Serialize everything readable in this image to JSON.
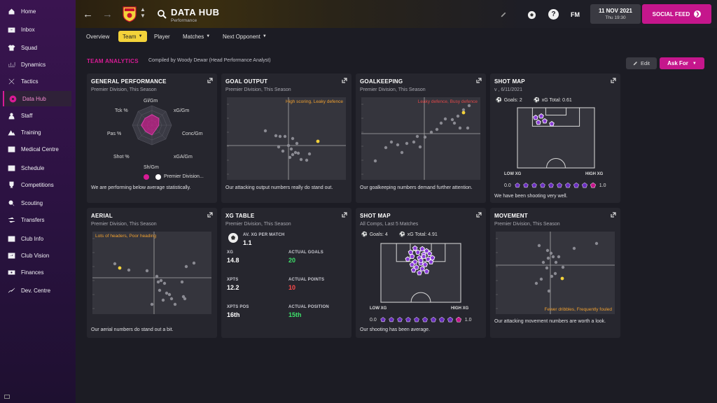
{
  "sidebar": {
    "items": [
      {
        "label": "Home",
        "icon": "home-icon"
      },
      {
        "label": "Inbox",
        "icon": "inbox-icon"
      },
      {
        "label": "Squad",
        "icon": "shirt-icon"
      },
      {
        "label": "Dynamics",
        "icon": "dynamics-icon"
      },
      {
        "label": "Tactics",
        "icon": "tactics-icon"
      },
      {
        "label": "Data Hub",
        "icon": "data-hub-icon"
      },
      {
        "label": "Staff",
        "icon": "staff-icon"
      },
      {
        "label": "Training",
        "icon": "training-icon"
      },
      {
        "label": "Medical Centre",
        "icon": "medical-icon"
      },
      {
        "label": "Schedule",
        "icon": "calendar-icon"
      },
      {
        "label": "Competitions",
        "icon": "trophy-icon"
      },
      {
        "label": "Scouting",
        "icon": "scouting-icon"
      },
      {
        "label": "Transfers",
        "icon": "transfers-icon"
      },
      {
        "label": "Club Info",
        "icon": "club-info-icon"
      },
      {
        "label": "Club Vision",
        "icon": "club-vision-icon"
      },
      {
        "label": "Finances",
        "icon": "finances-icon"
      },
      {
        "label": "Dev. Centre",
        "icon": "dev-centre-icon"
      }
    ],
    "active_index": 5
  },
  "header": {
    "title": "DATA HUB",
    "subtitle": "Performance",
    "date": "11 NOV 2021",
    "day_time": "Thu 19:30",
    "fm_logo": "FM",
    "help": "?",
    "social_feed": "SOCIAL FEED"
  },
  "tabs": [
    {
      "label": "Overview"
    },
    {
      "label": "Team"
    },
    {
      "label": "Player"
    },
    {
      "label": "Matches"
    },
    {
      "label": "Next Opponent"
    }
  ],
  "section": {
    "title": "TEAM ANALYTICS",
    "compiled_by": "Compiled by Woody Dewar (Head Performance Analyst)",
    "edit_label": "Edit",
    "ask_for_label": "Ask For"
  },
  "cards": {
    "general": {
      "title": "GENERAL PERFORMANCE",
      "sub": "Premier Division, This Season",
      "radar_labels": [
        "Gl/Gm",
        "xG/Gm",
        "Conc/Gm",
        "xGA/Gm",
        "Sh/Gm",
        "Shot %",
        "Pas %",
        "Tck %"
      ],
      "radar_values": [
        0.55,
        0.5,
        0.35,
        0.3,
        0.5,
        0.45,
        0.55,
        0.5
      ],
      "legend_label": "Premier Division...",
      "foot": "We are performing below average statistically."
    },
    "goal_output": {
      "title": "GOAL OUTPUT",
      "sub": "Premier Division, This Season",
      "note": "High scoring, Leaky defence",
      "foot": "Our attacking output numbers really do stand out."
    },
    "goalkeeping": {
      "title": "GOALKEEPING",
      "sub": "Premier Division, This Season",
      "note": "Leaky defence, Busy defence",
      "foot": "Our goalkeeping numbers demand further attention."
    },
    "shot_map_1": {
      "title": "SHOT MAP",
      "sub": "v , 6/11/2021",
      "goals": "Goals: 2",
      "xg_total": "xG Total: 0.61",
      "low_xg": "LOW XG",
      "high_xg": "HIGH XG",
      "scale_min": "0.0",
      "scale_max": "1.0",
      "foot": "We have been shooting very well."
    },
    "aerial": {
      "title": "AERIAL",
      "sub": "Premier Division, This Season",
      "note": "Lots of headers, Poor heading",
      "foot": "Our aerial numbers do stand out a bit."
    },
    "xg_table": {
      "title": "XG TABLE",
      "sub": "Premier Division, This Season",
      "av_label": "AV. XG PER MATCH",
      "av_value": "1.1",
      "xg_label": "XG",
      "xg_value": "14.8",
      "goals_label": "ACTUAL GOALS",
      "goals_value": "20",
      "xpts_label": "XPTS",
      "xpts_value": "12.2",
      "points_label": "ACTUAL POINTS",
      "points_value": "10",
      "xpos_label": "XPTS POS",
      "xpos_value": "16th",
      "pos_label": "ACTUAL POSITION",
      "pos_value": "15th"
    },
    "shot_map_2": {
      "title": "SHOT MAP",
      "sub": "All Comps, Last 5 Matches",
      "goals": "Goals: 4",
      "xg_total": "xG Total: 4.91",
      "low_xg": "LOW XG",
      "high_xg": "HIGH XG",
      "scale_min": "0.0",
      "scale_max": "1.0",
      "foot": "Our shooting has been average."
    },
    "movement": {
      "title": "MOVEMENT",
      "sub": "Premier Division, This Season",
      "note": "Fewer dribbles, Frequently fouled",
      "foot": "Our attacking movement numbers are worth a look."
    }
  },
  "colors": {
    "accent": "#d81b95",
    "tab_active": "#f3d23a",
    "note_orange": "#f0a030",
    "note_red": "#e04848",
    "green": "#3ee06a",
    "red": "#ff4a4a",
    "highlight_dot": "#f3d23a"
  }
}
